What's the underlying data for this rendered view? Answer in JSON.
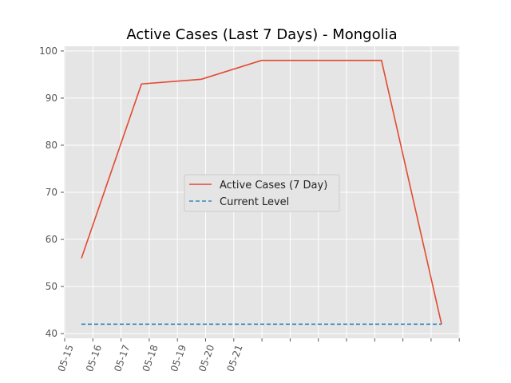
{
  "chart_data": {
    "type": "line",
    "title": "Active Cases (Last 7 Days) - Mongolia",
    "xlabel": "",
    "ylabel": "",
    "x": [
      "05-15",
      "05-16",
      "05-17",
      "05-18",
      "05-19",
      "05-20",
      "05-21"
    ],
    "x_tick_labels": [
      "05-15",
      "05-16",
      "05-17",
      "05-18",
      "05-19",
      "05-20",
      "05-21"
    ],
    "y_ticks": [
      40,
      50,
      60,
      70,
      80,
      90,
      100
    ],
    "ylim": [
      39,
      101
    ],
    "grid": true,
    "legend_position": "center",
    "series": [
      {
        "name": "Active Cases (7 Day)",
        "style": "solid",
        "color": "#E24A33",
        "x": [
          "05-15",
          "05-16",
          "05-17",
          "05-18",
          "05-19",
          "05-20",
          "05-21"
        ],
        "values": [
          56,
          93,
          94,
          98,
          98,
          98,
          42
        ]
      },
      {
        "name": "Current Level",
        "style": "dashed",
        "color": "#348ABD",
        "x": [
          "05-15",
          "05-16",
          "05-17",
          "05-18",
          "05-19",
          "05-20",
          "05-21"
        ],
        "values": [
          42,
          42,
          42,
          42,
          42,
          42,
          42
        ]
      }
    ]
  }
}
